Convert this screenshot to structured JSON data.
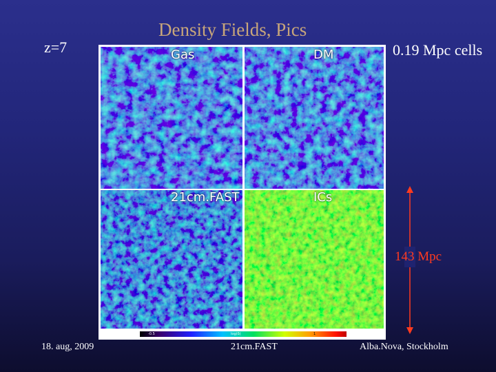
{
  "slide": {
    "title": "Density Fields, Pics",
    "redshift": "z=7",
    "cell_size": "0.19 Mpc cells",
    "box_scale": "143 Mpc",
    "footer": {
      "date": "18. aug, 2009",
      "code": "21cm.FAST",
      "place": "Alba.Nova, Stockholm"
    }
  },
  "figure": {
    "panels": [
      {
        "label": "Gas"
      },
      {
        "label": "DM"
      },
      {
        "label": "21cm.FAST"
      },
      {
        "label": "ICs"
      }
    ],
    "colorbar": {
      "min_label": "-0.5",
      "mid_label": "log(δ)",
      "max_label": "1"
    }
  },
  "colors": {
    "title": "#c8a67a",
    "scale_annotation": "#ff3b1f",
    "background": "#22267a"
  }
}
